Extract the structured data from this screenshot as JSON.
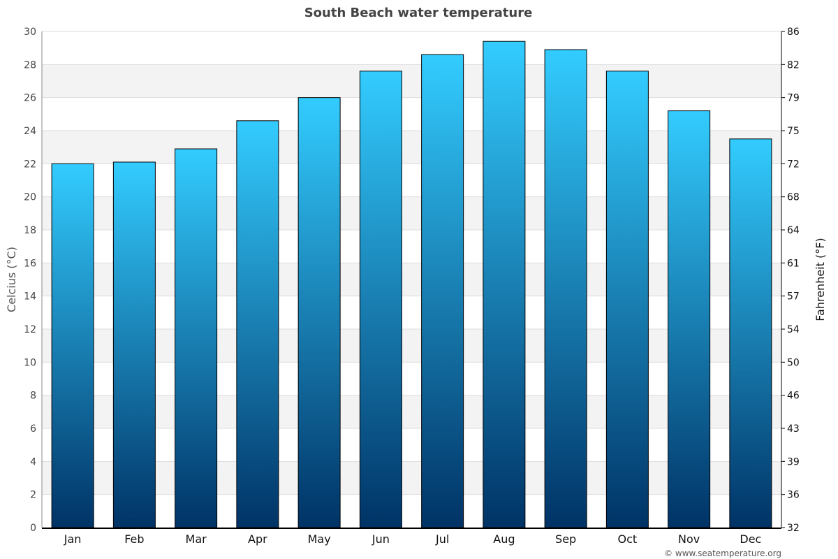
{
  "chart_data": {
    "type": "bar",
    "title": "South Beach water temperature",
    "ylabel": "Celcius (°C)",
    "y2label": "Fahrenheit (°F)",
    "categories": [
      "Jan",
      "Feb",
      "Mar",
      "Apr",
      "May",
      "Jun",
      "Jul",
      "Aug",
      "Sep",
      "Oct",
      "Nov",
      "Dec"
    ],
    "values": [
      22.0,
      22.1,
      22.9,
      24.6,
      26.0,
      27.6,
      28.6,
      29.4,
      28.9,
      27.6,
      25.2,
      23.5
    ],
    "ylim": [
      0,
      30
    ],
    "yticks": [
      "0",
      "2",
      "4",
      "6",
      "8",
      "10",
      "12",
      "14",
      "16",
      "18",
      "20",
      "22",
      "24",
      "26",
      "28",
      "30"
    ],
    "y2ticks": [
      "32",
      "36",
      "39",
      "43",
      "46",
      "50",
      "54",
      "57",
      "61",
      "64",
      "68",
      "72",
      "75",
      "79",
      "82",
      "86"
    ],
    "grid": true,
    "bar_gradient": {
      "top": "#33ccff",
      "bottom": "#003366"
    },
    "band_color": "#f3f3f3"
  },
  "credit": "© www.seatemperature.org"
}
